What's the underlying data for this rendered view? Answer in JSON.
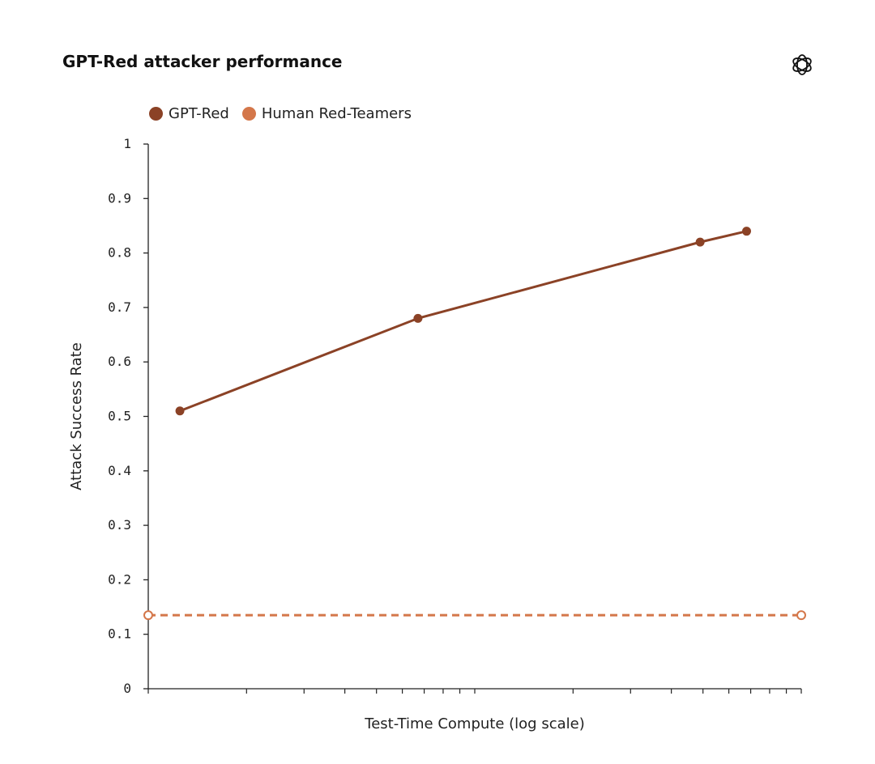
{
  "header": {
    "title": "GPT-Red attacker performance",
    "logo_icon": "openai-logo-icon"
  },
  "chart_data": {
    "type": "line",
    "title": "GPT-Red attacker performance",
    "xlabel": "Test-Time Compute (log scale)",
    "ylabel": "Attack Success Rate",
    "ylim": [
      0,
      1
    ],
    "yticks": [
      "0",
      "0.1",
      "0.2",
      "0.3",
      "0.4",
      "0.5",
      "0.6",
      "0.7",
      "0.8",
      "0.9",
      "1"
    ],
    "xscale": "log",
    "xlim": [
      1,
      100
    ],
    "grid": false,
    "legend_position": "top-left",
    "series": [
      {
        "name": "GPT-Red",
        "color": "#8B4226",
        "style": "solid",
        "marker": "filled",
        "x": [
          1.25,
          6.7,
          49,
          68
        ],
        "y": [
          0.51,
          0.68,
          0.82,
          0.84
        ]
      },
      {
        "name": "Human Red-Teamers",
        "color": "#D4774A",
        "style": "dashed",
        "marker": "hollow",
        "x": [
          1,
          100
        ],
        "y": [
          0.135,
          0.135
        ]
      }
    ]
  }
}
